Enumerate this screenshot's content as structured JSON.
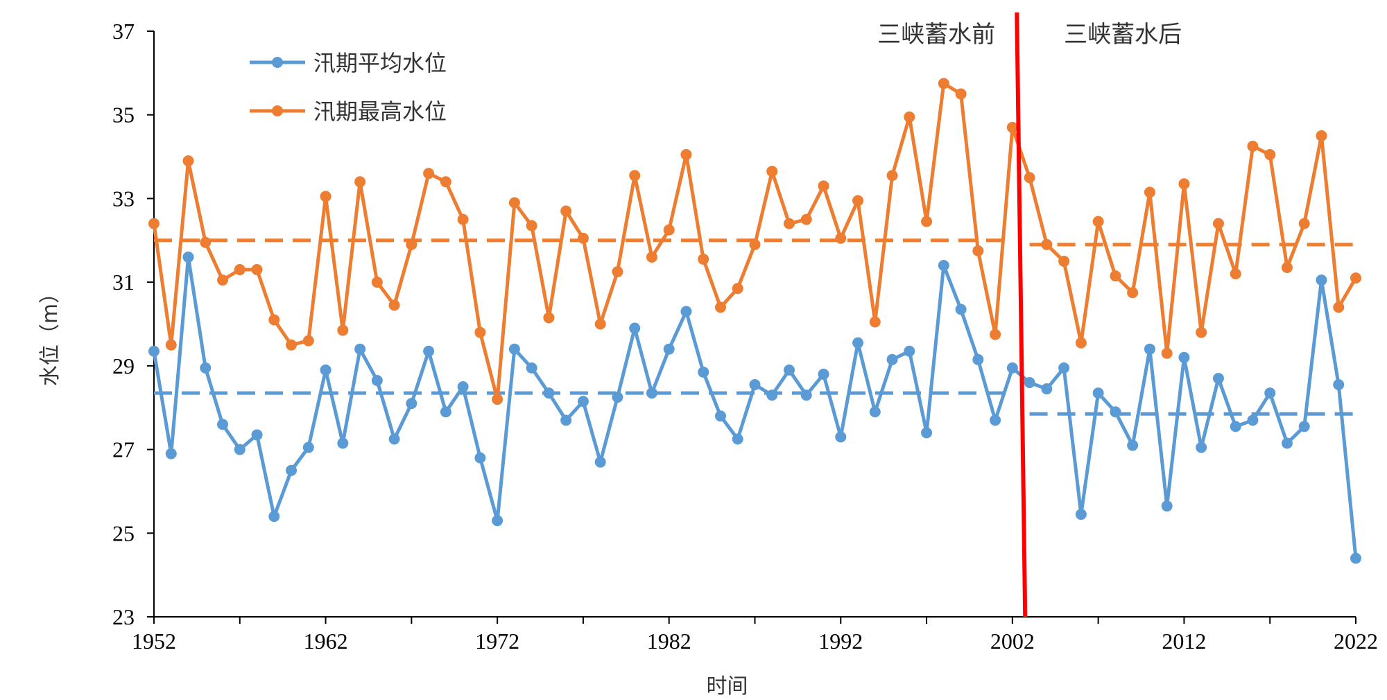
{
  "chart_data": {
    "type": "line",
    "xlabel": "时间",
    "ylabel": "水位（m）",
    "xlim": [
      1952,
      2022
    ],
    "ylim": [
      23,
      37
    ],
    "x_ticks": [
      1952,
      1962,
      1972,
      1982,
      1992,
      2002,
      2012,
      2022
    ],
    "y_ticks": [
      23,
      25,
      27,
      29,
      31,
      33,
      35,
      37
    ],
    "legend_position": "top-left",
    "series": [
      {
        "name": "汛期平均水位",
        "color": "#5B9BD5",
        "x": [
          1952,
          1953,
          1954,
          1955,
          1956,
          1957,
          1958,
          1959,
          1960,
          1961,
          1962,
          1963,
          1964,
          1965,
          1966,
          1967,
          1968,
          1969,
          1970,
          1971,
          1972,
          1973,
          1974,
          1975,
          1976,
          1977,
          1978,
          1979,
          1980,
          1981,
          1982,
          1983,
          1984,
          1985,
          1986,
          1987,
          1988,
          1989,
          1990,
          1991,
          1992,
          1993,
          1994,
          1995,
          1996,
          1997,
          1998,
          1999,
          2000,
          2001,
          2002,
          2003,
          2004,
          2005,
          2006,
          2007,
          2008,
          2009,
          2010,
          2011,
          2012,
          2013,
          2014,
          2015,
          2016,
          2017,
          2018,
          2019,
          2020,
          2021,
          2022
        ],
        "values": [
          29.35,
          26.9,
          31.6,
          28.95,
          27.6,
          27.0,
          27.35,
          25.4,
          26.5,
          27.05,
          28.9,
          27.15,
          29.4,
          28.65,
          27.25,
          28.1,
          29.35,
          27.9,
          28.5,
          26.8,
          25.3,
          29.4,
          28.95,
          28.35,
          27.7,
          28.15,
          26.7,
          28.25,
          29.9,
          28.35,
          29.4,
          30.3,
          28.85,
          27.8,
          27.25,
          28.55,
          28.3,
          28.9,
          28.3,
          28.8,
          27.3,
          29.55,
          27.9,
          29.15,
          29.35,
          27.4,
          31.4,
          30.35,
          29.15,
          27.7,
          28.95,
          28.6,
          28.45,
          28.95,
          25.45,
          28.35,
          27.9,
          27.1,
          29.4,
          25.65,
          29.2,
          27.05,
          28.7,
          27.55,
          27.7,
          28.35,
          27.15,
          27.55,
          31.05,
          28.55,
          24.4
        ]
      },
      {
        "name": "汛期最高水位",
        "color": "#ED7D31",
        "x": [
          1952,
          1953,
          1954,
          1955,
          1956,
          1957,
          1958,
          1959,
          1960,
          1961,
          1962,
          1963,
          1964,
          1965,
          1966,
          1967,
          1968,
          1969,
          1970,
          1971,
          1972,
          1973,
          1974,
          1975,
          1976,
          1977,
          1978,
          1979,
          1980,
          1981,
          1982,
          1983,
          1984,
          1985,
          1986,
          1987,
          1988,
          1989,
          1990,
          1991,
          1992,
          1993,
          1994,
          1995,
          1996,
          1997,
          1998,
          1999,
          2000,
          2001,
          2002,
          2003,
          2004,
          2005,
          2006,
          2007,
          2008,
          2009,
          2010,
          2011,
          2012,
          2013,
          2014,
          2015,
          2016,
          2017,
          2018,
          2019,
          2020,
          2021,
          2022
        ],
        "values": [
          32.4,
          29.5,
          33.9,
          31.95,
          31.05,
          31.3,
          31.3,
          30.1,
          29.5,
          29.6,
          33.05,
          29.85,
          33.4,
          31.0,
          30.45,
          31.9,
          33.6,
          33.4,
          32.5,
          29.8,
          28.2,
          32.9,
          32.35,
          30.15,
          32.7,
          32.05,
          30.0,
          31.25,
          33.55,
          31.6,
          32.25,
          34.05,
          31.55,
          30.4,
          30.85,
          31.9,
          33.65,
          32.4,
          32.5,
          33.3,
          32.05,
          32.95,
          30.05,
          33.55,
          34.95,
          32.45,
          35.75,
          35.5,
          31.75,
          29.75,
          34.7,
          33.5,
          31.9,
          31.5,
          29.55,
          32.45,
          31.15,
          30.75,
          33.15,
          29.3,
          33.35,
          29.8,
          32.4,
          31.2,
          34.25,
          34.05,
          31.35,
          32.4,
          34.5,
          30.4,
          31.1
        ]
      }
    ],
    "mean_lines": [
      {
        "series": "汛期平均水位",
        "period": "三峡蓄水前",
        "x": [
          1952,
          2002
        ],
        "value": 28.35
      },
      {
        "series": "汛期平均水位",
        "period": "三峡蓄水后",
        "x": [
          2003,
          2022
        ],
        "value": 27.85
      },
      {
        "series": "汛期最高水位",
        "period": "三峡蓄水前",
        "x": [
          1952,
          2002
        ],
        "value": 32.0
      },
      {
        "series": "汛期最高水位",
        "period": "三峡蓄水后",
        "x": [
          2003,
          2022
        ],
        "value": 31.9
      }
    ],
    "annotations": [
      {
        "text": "三峡蓄水前",
        "x": 2001,
        "y": 37.0,
        "anchor": "end"
      },
      {
        "text": "三峡蓄水后",
        "x": 2005,
        "y": 37.0,
        "anchor": "start"
      }
    ],
    "divider": {
      "x": 2002.5,
      "color": "#FF0000"
    }
  }
}
